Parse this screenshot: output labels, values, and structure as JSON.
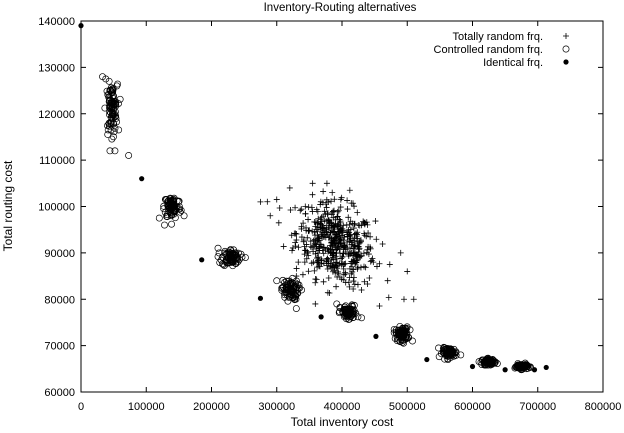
{
  "chart_data": {
    "type": "scatter",
    "title": "Inventory-Routing alternatives",
    "xlabel": "Total inventory cost",
    "ylabel": "Total routing cost",
    "xlim": [
      0,
      800000
    ],
    "ylim": [
      60000,
      140000
    ],
    "x_ticks": [
      0,
      100000,
      200000,
      300000,
      400000,
      500000,
      600000,
      700000,
      800000
    ],
    "y_ticks": [
      60000,
      70000,
      80000,
      90000,
      100000,
      110000,
      120000,
      130000,
      140000
    ],
    "x_tick_labels": [
      "0",
      "100000",
      "200000",
      "300000",
      "400000",
      "500000",
      "600000",
      "700000",
      "800000"
    ],
    "y_tick_labels": [
      "60000",
      "70000",
      "80000",
      "90000",
      "100000",
      "110000",
      "120000",
      "130000",
      "140000"
    ],
    "grid": false,
    "legend_position": "top-right",
    "series": [
      {
        "name": "Totally random frq.",
        "marker": "plus",
        "color": "#000000",
        "cluster_summary": {
          "x_center": 390000,
          "y_center": 92000,
          "x_range": [
            275000,
            510000
          ],
          "y_range": [
            78000,
            105000
          ],
          "approx_count": 500
        },
        "values": [
          [
            355000,
            105000
          ],
          [
            385000,
            103000
          ],
          [
            412000,
            103500
          ],
          [
            275000,
            101000
          ],
          [
            290000,
            98000
          ],
          [
            300000,
            101500
          ],
          [
            495000,
            80000
          ],
          [
            510000,
            80000
          ],
          [
            500000,
            86000
          ],
          [
            490000,
            90000
          ],
          [
            448000,
            88000
          ],
          [
            330000,
            85000
          ],
          [
            430000,
            82000
          ],
          [
            470000,
            84000
          ],
          [
            320000,
            104000
          ]
        ]
      },
      {
        "name": "Controlled random frq.",
        "marker": "open-circle",
        "color": "#000000",
        "cluster_summary": [
          {
            "x_center": 47000,
            "y_center": 121000,
            "x_range": [
              33000,
              60000
            ],
            "y_range": [
              112000,
              128000
            ]
          },
          {
            "x_center": 140000,
            "y_center": 100000,
            "x_range": [
              120000,
              158000
            ],
            "y_range": [
              96000,
              104000
            ]
          },
          {
            "x_center": 230000,
            "y_center": 89000,
            "x_range": [
              210000,
              252000
            ],
            "y_range": [
              86000,
              91500
            ]
          },
          {
            "x_center": 320000,
            "y_center": 82000,
            "x_range": [
              300000,
              338000
            ],
            "y_range": [
              78000,
              84500
            ]
          },
          {
            "x_center": 410000,
            "y_center": 77000,
            "x_range": [
              392000,
              430000
            ],
            "y_range": [
              74500,
              79500
            ]
          },
          {
            "x_center": 492000,
            "y_center": 72500,
            "x_range": [
              480000,
              508000
            ],
            "y_range": [
              70000,
              74500
            ]
          },
          {
            "x_center": 565000,
            "y_center": 68500,
            "x_range": [
              548000,
              582000
            ],
            "y_range": [
              67000,
              70000
            ]
          },
          {
            "x_center": 625000,
            "y_center": 66500,
            "x_range": [
              610000,
              640000
            ],
            "y_range": [
              65800,
              67800
            ]
          },
          {
            "x_center": 675000,
            "y_center": 65500,
            "x_range": [
              660000,
              690000
            ],
            "y_range": [
              64800,
              66500
            ]
          }
        ],
        "values": [
          [
            33000,
            128000
          ],
          [
            38000,
            127500
          ],
          [
            55000,
            126000
          ],
          [
            52000,
            112000
          ],
          [
            73000,
            111000
          ],
          [
            120000,
            97500
          ],
          [
            128000,
            96000
          ],
          [
            158000,
            98000
          ],
          [
            210000,
            91000
          ],
          [
            252000,
            89000
          ],
          [
            300000,
            84000
          ],
          [
            338000,
            82000
          ],
          [
            330000,
            78000
          ],
          [
            392000,
            79000
          ],
          [
            430000,
            76000
          ],
          [
            480000,
            73500
          ],
          [
            508000,
            71000
          ],
          [
            548000,
            69500
          ],
          [
            582000,
            68000
          ]
        ]
      },
      {
        "name": "Identical frq.",
        "marker": "filled-circle",
        "color": "#000000",
        "values": [
          [
            0,
            139000
          ],
          [
            93000,
            106000
          ],
          [
            185000,
            88500
          ],
          [
            275000,
            80200
          ],
          [
            368000,
            76200
          ],
          [
            452000,
            72000
          ],
          [
            530000,
            67000
          ],
          [
            600000,
            65500
          ],
          [
            650000,
            64800
          ],
          [
            695000,
            64800
          ],
          [
            713000,
            65300
          ]
        ]
      }
    ]
  }
}
